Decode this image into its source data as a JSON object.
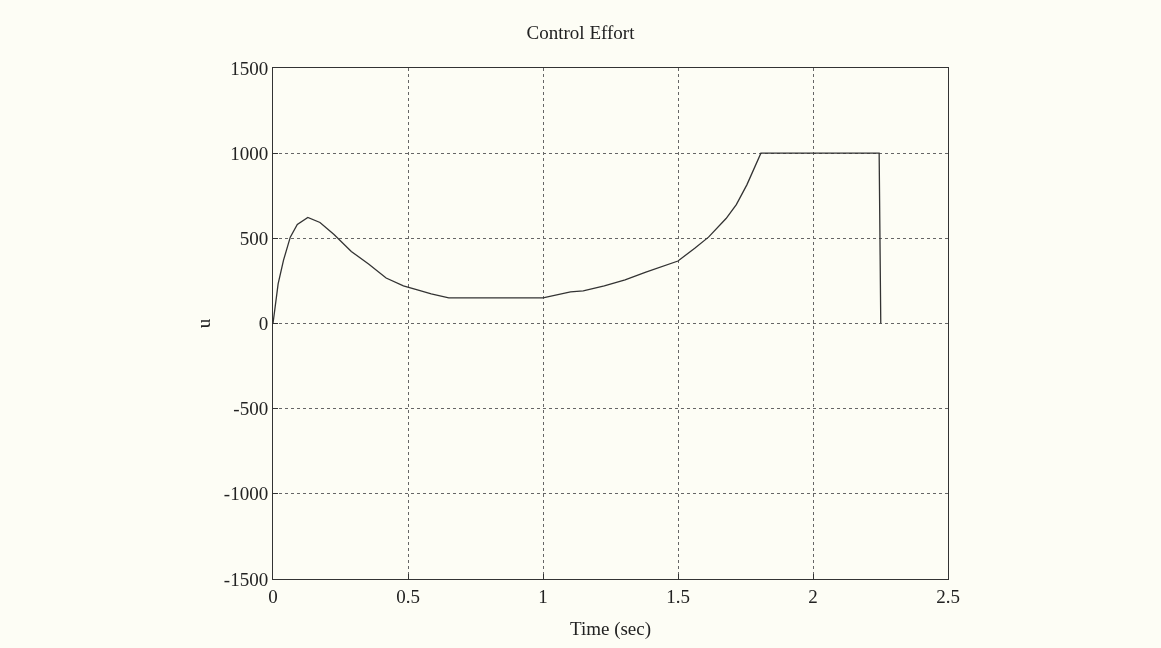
{
  "chart_data": {
    "type": "line",
    "title": "Control Effort",
    "xlabel": "Time (sec)",
    "ylabel": "u",
    "x": [
      0,
      0.019,
      0.039,
      0.064,
      0.09,
      0.129,
      0.174,
      0.226,
      0.29,
      0.354,
      0.419,
      0.483,
      0.535,
      0.586,
      0.651,
      1.0,
      1.102,
      1.149,
      1.227,
      1.304,
      1.381,
      1.5,
      1.562,
      1.613,
      1.678,
      1.716,
      1.755,
      1.807,
      2.245,
      2.251
    ],
    "series": [
      {
        "color": "#333333",
        "values": [
          0,
          233,
          372,
          507,
          581,
          623,
          593,
          523,
          423,
          349,
          267,
          221,
          198,
          174,
          151,
          151,
          186,
          191,
          221,
          256,
          302,
          367,
          442,
          507,
          616,
          698,
          814,
          1000,
          1000,
          0
        ]
      }
    ],
    "xlim": [
      0,
      2.5
    ],
    "xticks": [
      0,
      0.5,
      1,
      1.5,
      2,
      2.5
    ],
    "ylim": [
      -1500,
      1500
    ],
    "yticks": [
      -1500,
      -1000,
      -500,
      0,
      500,
      1000,
      1500
    ],
    "grid": true,
    "line_style": "solid",
    "marker": "none"
  }
}
